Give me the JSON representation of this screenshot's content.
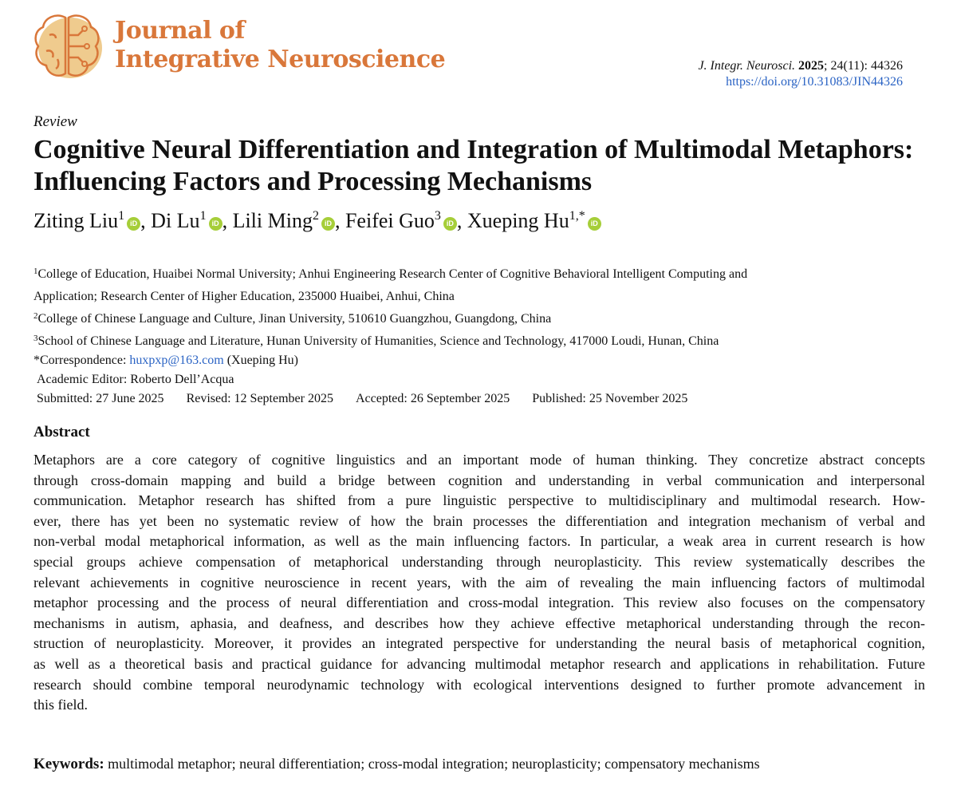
{
  "journal": {
    "name_line1": "Journal of",
    "name_line2": "Integrative Neuroscience",
    "brand_color": "#D9773A"
  },
  "citation": {
    "journal_abbr": "J. Integr. Neurosci.",
    "year": "2025",
    "volume_issue": "; 24(11): 44326",
    "doi": "https://doi.org/10.31083/JIN44326"
  },
  "article_type": "Review",
  "title": "Cognitive Neural Differentiation and Integration of Multimodal Metaphors: Influencing Factors and Processing Mechanisms",
  "authors": [
    {
      "name": "Ziting Liu",
      "sup": "1"
    },
    {
      "name": "Di Lu",
      "sup": "1"
    },
    {
      "name": "Lili Ming",
      "sup": "2"
    },
    {
      "name": "Feifei Guo",
      "sup": "3"
    },
    {
      "name": "Xueping Hu",
      "sup": "1,*"
    }
  ],
  "orcid_label": "iD",
  "affiliations": [
    {
      "sup": "1",
      "text": "College of Education, Huaibei Normal University; Anhui Engineering Research Center of Cognitive Behavioral Intelligent Computing and"
    },
    {
      "sup": "",
      "text": "Application; Research Center of Higher Education, 235000 Huaibei, Anhui, China"
    },
    {
      "sup": "2",
      "text": "College of Chinese Language and Culture, Jinan University, 510610 Guangzhou, Guangdong, China"
    },
    {
      "sup": "3",
      "text": "School of Chinese Language and Literature, Hunan University of Humanities, Science and Technology, 417000 Loudi, Hunan, China"
    }
  ],
  "correspondence": {
    "label": "*Correspondence: ",
    "email": "huxpxp@163.com",
    "name": " (Xueping Hu)"
  },
  "academic_editor": "Academic Editor: Roberto Dell’Acqua",
  "dates": [
    "Submitted: 27 June 2025",
    "Revised: 12 September 2025",
    "Accepted: 26 September 2025",
    "Published: 25 November 2025"
  ],
  "abstract": {
    "heading": "Abstract",
    "lines": [
      "Metaphors are a core category of cognitive linguistics and an important mode of human thinking. They concretize abstract concepts",
      "through cross-domain mapping and build a bridge between cognition and understanding in verbal communication and interpersonal",
      "communication. Metaphor research has shifted from a pure linguistic perspective to multidisciplinary and multimodal research. How-",
      "ever, there has yet been no systematic review of how the brain processes the differentiation and integration mechanism of verbal and",
      "non-verbal modal metaphorical information, as well as the main influencing factors. In particular, a weak area in current research is how",
      "special groups achieve compensation of metaphorical understanding through neuroplasticity. This review systematically describes the",
      "relevant achievements in cognitive neuroscience in recent years, with the aim of revealing the main influencing factors of multimodal",
      "metaphor processing and the process of neural differentiation and cross-modal integration. This review also focuses on the compensatory",
      "mechanisms in autism, aphasia, and deafness, and describes how they achieve effective metaphorical understanding through the recon-",
      "struction of neuroplasticity. Moreover, it provides an integrated perspective for understanding the neural basis of metaphorical cognition,",
      "as well as a theoretical basis and practical guidance for advancing multimodal metaphor research and applications in rehabilitation. Future",
      "research should combine temporal neurodynamic technology with ecological interventions designed to further promote advancement in",
      "this field."
    ]
  },
  "keywords": {
    "label": "Keywords:",
    "text": "multimodal metaphor; neural differentiation; cross-modal integration; neuroplasticity; compensatory mechanisms"
  }
}
